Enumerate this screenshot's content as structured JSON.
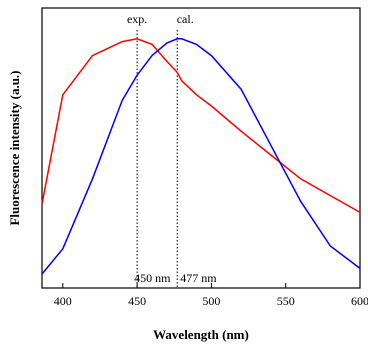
{
  "chart_data": {
    "type": "line",
    "x_label": "Wavelength (nm)",
    "y_label": "Fluorescence intensity (a.u.)",
    "x": [
      386,
      400,
      420,
      440,
      450,
      460,
      470,
      477,
      480,
      490,
      500,
      520,
      540,
      560,
      580,
      600
    ],
    "series": [
      {
        "name": "exp.",
        "color": "#ff0000",
        "values": [
          0.3,
          0.69,
          0.83,
          0.88,
          0.89,
          0.87,
          0.81,
          0.77,
          0.74,
          0.69,
          0.65,
          0.56,
          0.475,
          0.39,
          0.33,
          0.27
        ]
      },
      {
        "name": "cal.",
        "color": "#0000ff",
        "values": [
          0.05,
          0.14,
          0.39,
          0.67,
          0.76,
          0.83,
          0.875,
          0.89,
          0.89,
          0.87,
          0.83,
          0.71,
          0.51,
          0.31,
          0.15,
          0.07
        ]
      }
    ],
    "xlim": [
      386,
      600
    ],
    "xticks": [
      400,
      450,
      500,
      550,
      600
    ],
    "ylim": [
      0,
      1
    ],
    "annotations": [
      {
        "x": 450,
        "label": "450 nm"
      },
      {
        "x": 477,
        "label": "477 nm"
      }
    ]
  }
}
